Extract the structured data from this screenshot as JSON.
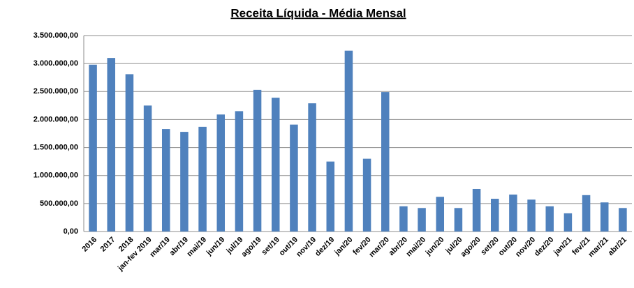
{
  "chart_data": {
    "type": "bar",
    "title": "Receita Líquida - Média Mensal",
    "categories": [
      "2016",
      "2017",
      "2018",
      "jan-fev 2019",
      "mar/19",
      "abr/19",
      "mai/19",
      "jun/19",
      "jul/19",
      "ago/19",
      "set/19",
      "out/19",
      "nov/19",
      "dez/19",
      "jan/20",
      "fev/20",
      "mar/20",
      "abr/20",
      "mai/20",
      "jun/20",
      "jul/20",
      "ago/20",
      "set/20",
      "out/20",
      "nov/20",
      "dez/20",
      "jan/21",
      "fev/21",
      "mar/21",
      "abr/21"
    ],
    "values": [
      2980000,
      3100000,
      2810000,
      2250000,
      1830000,
      1780000,
      1870000,
      2090000,
      2150000,
      2530000,
      2390000,
      1910000,
      2290000,
      1250000,
      3230000,
      1300000,
      2490000,
      450000,
      420000,
      620000,
      420000,
      760000,
      585000,
      660000,
      570000,
      450000,
      325000,
      650000,
      520000,
      420000
    ],
    "color": "#4f81bd",
    "ylim": [
      0,
      3500000
    ],
    "yticks": [
      {
        "value": 0,
        "label": "0,00"
      },
      {
        "value": 500000,
        "label": "500.000,00"
      },
      {
        "value": 1000000,
        "label": "1.000.000,00"
      },
      {
        "value": 1500000,
        "label": "1.500.000,00"
      },
      {
        "value": 2000000,
        "label": "2.000.000,00"
      },
      {
        "value": 2500000,
        "label": "2.500.000,00"
      },
      {
        "value": 3000000,
        "label": "3.000.000,00"
      },
      {
        "value": 3500000,
        "label": "3.500.000,00"
      }
    ],
    "grid": true
  }
}
